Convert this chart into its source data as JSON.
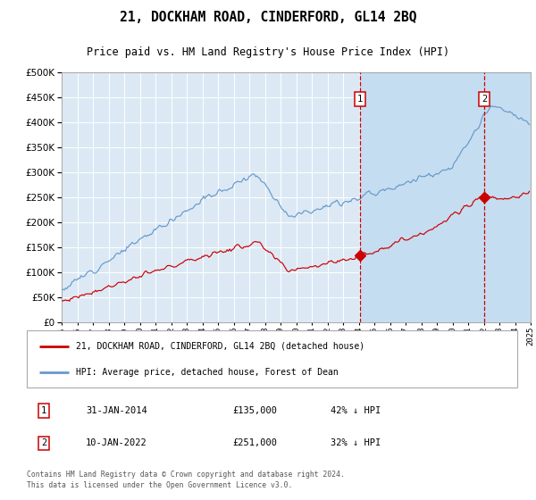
{
  "title": "21, DOCKHAM ROAD, CINDERFORD, GL14 2BQ",
  "subtitle": "Price paid vs. HM Land Registry's House Price Index (HPI)",
  "legend_line1": "21, DOCKHAM ROAD, CINDERFORD, GL14 2BQ (detached house)",
  "legend_line2": "HPI: Average price, detached house, Forest of Dean",
  "sale1_date_str": "31-JAN-2014",
  "sale1_price": 135000,
  "sale1_pct": "42% ↓ HPI",
  "sale1_year": 2014.08,
  "sale2_date_str": "10-JAN-2022",
  "sale2_price": 251000,
  "sale2_pct": "32% ↓ HPI",
  "sale2_year": 2022.03,
  "footer": "Contains HM Land Registry data © Crown copyright and database right 2024.\nThis data is licensed under the Open Government Licence v3.0.",
  "ylim": [
    0,
    500000
  ],
  "yticks": [
    0,
    50000,
    100000,
    150000,
    200000,
    250000,
    300000,
    350000,
    400000,
    450000,
    500000
  ],
  "plot_bg_color": "#dce9f5",
  "shade_color": "#c5ddf0",
  "line_color_red": "#cc0000",
  "line_color_blue": "#6699cc",
  "marker_box_color": "#cc0000",
  "vline_color": "#cc0000",
  "grid_color": "#cccccc",
  "x_start_year": 1995,
  "x_end_year": 2025,
  "hpi_seed": 12,
  "price_seed": 77
}
